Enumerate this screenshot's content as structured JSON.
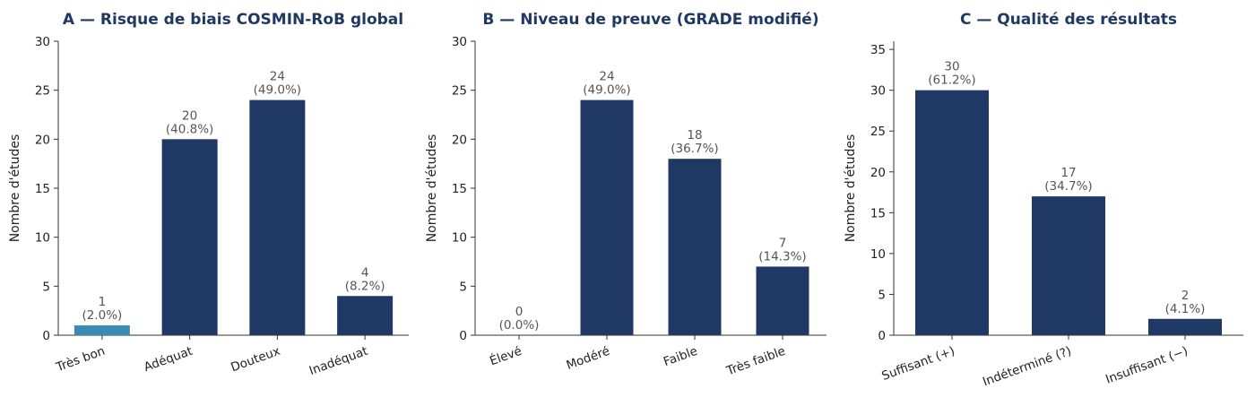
{
  "chart_data": [
    {
      "type": "bar",
      "title": "A — Risque de biais COSMIN-RoB global",
      "xlabel": "",
      "ylabel": "Nombre d'études",
      "ylim": [
        0,
        30
      ],
      "yticks": [
        0,
        5,
        10,
        15,
        20,
        25,
        30
      ],
      "grid": false,
      "categories": [
        "Très bon",
        "Adéquat",
        "Douteux",
        "Inadéquat"
      ],
      "values": [
        1,
        20,
        24,
        4
      ],
      "data_labels": [
        [
          "1",
          "(2.0%)"
        ],
        [
          "20",
          "(40.8%)"
        ],
        [
          "24",
          "(49.0%)"
        ],
        [
          "4",
          "(8.2%)"
        ]
      ],
      "colors": [
        "#3a8bb3",
        "#1f3864",
        "#1f3864",
        "#1f3864"
      ]
    },
    {
      "type": "bar",
      "title": "B — Niveau de preuve (GRADE modifié)",
      "xlabel": "",
      "ylabel": "Nombre d'études",
      "ylim": [
        0,
        30
      ],
      "yticks": [
        0,
        5,
        10,
        15,
        20,
        25,
        30
      ],
      "grid": false,
      "categories": [
        "Élevé",
        "Modéré",
        "Faible",
        "Très faible"
      ],
      "values": [
        0,
        24,
        18,
        7
      ],
      "data_labels": [
        [
          "0",
          "(0.0%)"
        ],
        [
          "24",
          "(49.0%)"
        ],
        [
          "18",
          "(36.7%)"
        ],
        [
          "7",
          "(14.3%)"
        ]
      ],
      "colors": [
        "#1f3864",
        "#1f3864",
        "#1f3864",
        "#1f3864"
      ]
    },
    {
      "type": "bar",
      "title": "C — Qualité des résultats",
      "xlabel": "",
      "ylabel": "Nombre d'études",
      "ylim": [
        0,
        36
      ],
      "yticks": [
        0,
        5,
        10,
        15,
        20,
        25,
        30,
        35
      ],
      "grid": false,
      "categories": [
        "Suffisant (+)",
        "Indéterminé (?)",
        "Insuffisant (−)"
      ],
      "values": [
        30,
        17,
        2
      ],
      "data_labels": [
        [
          "30",
          "(61.2%)"
        ],
        [
          "17",
          "(34.7%)"
        ],
        [
          "2",
          "(4.1%)"
        ]
      ],
      "colors": [
        "#1f3864",
        "#1f3864",
        "#1f3864"
      ]
    }
  ]
}
